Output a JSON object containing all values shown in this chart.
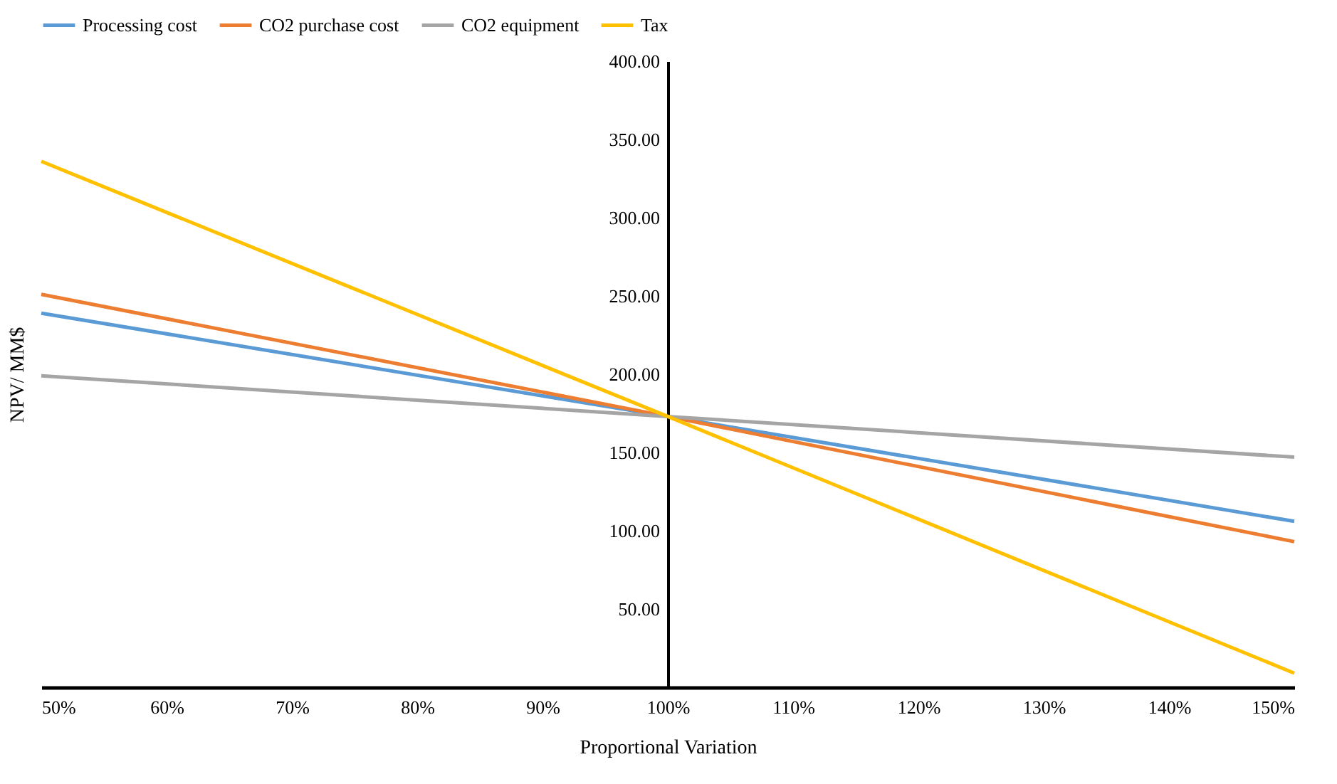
{
  "chart_data": {
    "type": "line",
    "xlabel": "Proportional Variation",
    "ylabel": "NPV/ MM$",
    "x": [
      50,
      100,
      150
    ],
    "series": [
      {
        "name": "Processing cost",
        "color": "#5b9bd5",
        "values": [
          239,
          173,
          106
        ]
      },
      {
        "name": "CO2 purchase cost",
        "color": "#ed7d31",
        "values": [
          251,
          173,
          93
        ]
      },
      {
        "name": "CO2 equipment",
        "color": "#a5a5a5",
        "values": [
          199,
          173,
          147
        ]
      },
      {
        "name": "Tax",
        "color": "#ffc000",
        "values": [
          336,
          173,
          9
        ]
      }
    ],
    "xlim": [
      50,
      150
    ],
    "xticks": [
      {
        "value": 50,
        "label": "50%"
      },
      {
        "value": 60,
        "label": "60%"
      },
      {
        "value": 70,
        "label": "70%"
      },
      {
        "value": 80,
        "label": "80%"
      },
      {
        "value": 90,
        "label": "90%"
      },
      {
        "value": 100,
        "label": "100%"
      },
      {
        "value": 110,
        "label": "110%"
      },
      {
        "value": 120,
        "label": "120%"
      },
      {
        "value": 130,
        "label": "130%"
      },
      {
        "value": 140,
        "label": "140%"
      },
      {
        "value": 150,
        "label": "150%"
      }
    ],
    "ylim": [
      0,
      400
    ],
    "yticks": [
      {
        "value": 50,
        "label": "50.00"
      },
      {
        "value": 100,
        "label": "100.00"
      },
      {
        "value": 150,
        "label": "150.00"
      },
      {
        "value": 200,
        "label": "200.00"
      },
      {
        "value": 250,
        "label": "250.00"
      },
      {
        "value": 300,
        "label": "300.00"
      },
      {
        "value": 350,
        "label": "350.00"
      },
      {
        "value": 400,
        "label": "400.00"
      }
    ],
    "grid": false,
    "legend": "top",
    "marker": "none",
    "line_style": "solid"
  }
}
